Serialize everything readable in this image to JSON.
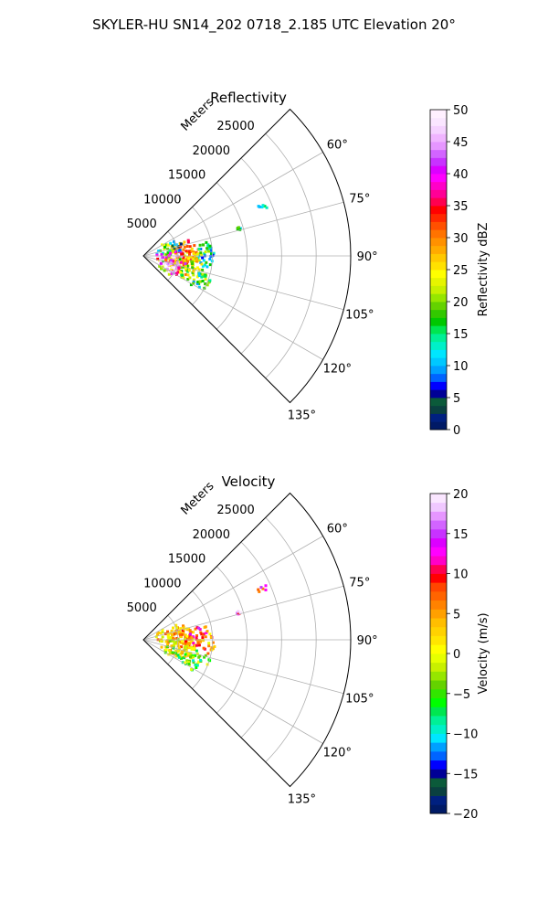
{
  "suptitle": "SKYLER-HU  SN14_202  0718_2.185 UTC Elevation 20°",
  "chart_data": [
    {
      "type": "polar-sector",
      "title": "Reflectivity",
      "range_label": "Meters",
      "range_ticks": [
        5000,
        10000,
        15000,
        20000,
        25000
      ],
      "range_tick_labels": [
        "5000",
        "10000",
        "15000",
        "20000",
        "25000"
      ],
      "range_max": 30000,
      "theta_ticks_deg": [
        60,
        75,
        90,
        105,
        120,
        135
      ],
      "theta_tick_labels": [
        "60°",
        "75°",
        "90°",
        "105°",
        "120°",
        "135°"
      ],
      "theta_range_deg": [
        45,
        135
      ],
      "grid": true,
      "colorbar": {
        "label": "Reflectivity dBZ",
        "vmin": 0,
        "vmax": 50,
        "ticks": [
          0,
          5,
          10,
          15,
          20,
          25,
          30,
          35,
          40,
          45,
          50
        ],
        "tick_labels": [
          "0",
          "5",
          "10",
          "15",
          "20",
          "25",
          "30",
          "35",
          "40",
          "45",
          "50"
        ],
        "colors": [
          "#001a66",
          "#002080",
          "#0a4040",
          "#0b5a3a",
          "#000096",
          "#0000ff",
          "#0064ff",
          "#00a0ff",
          "#00c8ff",
          "#00e6ff",
          "#00f0c8",
          "#00f096",
          "#00e650",
          "#00c800",
          "#32c800",
          "#64d200",
          "#96e600",
          "#c8f000",
          "#e6f500",
          "#ffff00",
          "#ffe100",
          "#ffc800",
          "#ffaa00",
          "#ff9100",
          "#ff7300",
          "#ff5000",
          "#ff2800",
          "#ff0000",
          "#ff0050",
          "#ff0096",
          "#ff00c8",
          "#ff00ff",
          "#dc00ff",
          "#c832ff",
          "#d264ff",
          "#e696ff",
          "#f0b4ff",
          "#f5d2ff",
          "#fae6ff",
          "#fff0ff"
        ]
      },
      "echoes": [
        {
          "az": 91,
          "r": 4000,
          "w": 4500,
          "h": 5000,
          "value": 22
        },
        {
          "az": 95,
          "r": 5500,
          "w": 5000,
          "h": 5000,
          "value": 28
        },
        {
          "az": 85,
          "r": 6000,
          "w": 4000,
          "h": 4000,
          "value": 30
        },
        {
          "az": 100,
          "r": 4500,
          "w": 3500,
          "h": 3500,
          "value": 40
        },
        {
          "az": 104,
          "r": 3500,
          "w": 3000,
          "h": 3000,
          "value": 45
        },
        {
          "az": 110,
          "r": 7500,
          "w": 4000,
          "h": 3000,
          "value": 20
        },
        {
          "az": 112,
          "r": 9000,
          "w": 3000,
          "h": 2500,
          "value": 15
        },
        {
          "az": 90,
          "r": 9000,
          "w": 3000,
          "h": 3500,
          "value": 12
        },
        {
          "az": 80,
          "r": 8500,
          "w": 2500,
          "h": 2500,
          "value": 18
        },
        {
          "az": 68,
          "r": 5000,
          "w": 2000,
          "h": 2000,
          "value": 6
        },
        {
          "az": 74,
          "r": 3000,
          "w": 2500,
          "h": 2000,
          "value": 16
        },
        {
          "az": 97,
          "r": 7000,
          "w": 3000,
          "h": 2500,
          "value": 24
        },
        {
          "az": 87,
          "r": 3000,
          "w": 2500,
          "h": 2000,
          "value": 36
        },
        {
          "az": 66,
          "r": 18800,
          "w": 1800,
          "h": 1400,
          "value": 15
        },
        {
          "az": 73,
          "r": 14200,
          "w": 600,
          "h": 500,
          "value": 14
        }
      ]
    },
    {
      "type": "polar-sector",
      "title": "Velocity",
      "range_label": "Meters",
      "range_ticks": [
        5000,
        10000,
        15000,
        20000,
        25000
      ],
      "range_tick_labels": [
        "5000",
        "10000",
        "15000",
        "20000",
        "25000"
      ],
      "range_max": 30000,
      "theta_ticks_deg": [
        60,
        75,
        90,
        105,
        120,
        135
      ],
      "theta_tick_labels": [
        "60°",
        "75°",
        "90°",
        "105°",
        "120°",
        "135°"
      ],
      "theta_range_deg": [
        45,
        135
      ],
      "grid": true,
      "colorbar": {
        "label": "Velocity (m/s)",
        "vmin": -20,
        "vmax": 20,
        "ticks": [
          -20,
          -15,
          -10,
          -5,
          0,
          5,
          10,
          15,
          20
        ],
        "tick_labels": [
          "−20",
          "−15",
          "−10",
          "−5",
          "0",
          "5",
          "10",
          "15",
          "20"
        ],
        "colors": [
          "#001a66",
          "#002080",
          "#0a4040",
          "#0b5a3a",
          "#000096",
          "#0000ff",
          "#0064ff",
          "#00a0ff",
          "#00e6ff",
          "#00f0c8",
          "#00f096",
          "#00e650",
          "#00ff00",
          "#32e600",
          "#64d200",
          "#96e600",
          "#c8f000",
          "#e6ff00",
          "#ffff00",
          "#ffe600",
          "#ffd200",
          "#ffbe00",
          "#ffa000",
          "#ff8200",
          "#ff6400",
          "#ff4600",
          "#ff0000",
          "#ff0050",
          "#ff00c8",
          "#ff00ff",
          "#dc00ff",
          "#c832ff",
          "#d264ff",
          "#e696ff",
          "#f0c8ff",
          "#fae6ff"
        ]
      },
      "echoes": [
        {
          "az": 90,
          "r": 5000,
          "w": 5000,
          "h": 5000,
          "value": 4
        },
        {
          "az": 84,
          "r": 6500,
          "w": 4500,
          "h": 3500,
          "value": 6
        },
        {
          "az": 96,
          "r": 5000,
          "w": 4000,
          "h": 3500,
          "value": 2
        },
        {
          "az": 82,
          "r": 8500,
          "w": 2500,
          "h": 2500,
          "value": 9
        },
        {
          "az": 100,
          "r": 3500,
          "w": 3000,
          "h": 2500,
          "value": 0
        },
        {
          "az": 108,
          "r": 6000,
          "w": 4000,
          "h": 3000,
          "value": -2
        },
        {
          "az": 113,
          "r": 7500,
          "w": 3000,
          "h": 2500,
          "value": -5
        },
        {
          "az": 108,
          "r": 9000,
          "w": 2000,
          "h": 2000,
          "value": -4
        },
        {
          "az": 92,
          "r": 9000,
          "w": 2500,
          "h": 3000,
          "value": 5
        },
        {
          "az": 70,
          "r": 4500,
          "w": 2000,
          "h": 2000,
          "value": 3
        },
        {
          "az": 76,
          "r": 3000,
          "w": 2500,
          "h": 2000,
          "value": 1
        },
        {
          "az": 88,
          "r": 7000,
          "w": 2500,
          "h": 2000,
          "value": 10
        },
        {
          "az": 66,
          "r": 18800,
          "w": 1800,
          "h": 1400,
          "value": 11
        },
        {
          "az": 73,
          "r": 14200,
          "w": 600,
          "h": 500,
          "value": 14
        }
      ]
    }
  ]
}
